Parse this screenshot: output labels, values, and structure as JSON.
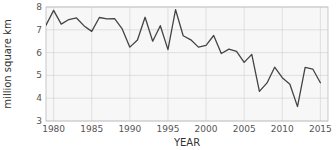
{
  "chart_data": {
    "type": "line",
    "x": [
      1979,
      1980,
      1981,
      1982,
      1983,
      1984,
      1985,
      1986,
      1987,
      1988,
      1989,
      1990,
      1991,
      1992,
      1993,
      1994,
      1995,
      1996,
      1997,
      1998,
      1999,
      2000,
      2001,
      2002,
      2003,
      2004,
      2005,
      2006,
      2007,
      2008,
      2009,
      2010,
      2011,
      2012,
      2013,
      2014,
      2015
    ],
    "values": [
      7.2,
      7.85,
      7.25,
      7.45,
      7.52,
      7.17,
      6.93,
      7.54,
      7.48,
      7.49,
      7.04,
      6.24,
      6.55,
      7.55,
      6.5,
      7.18,
      6.13,
      7.88,
      6.74,
      6.56,
      6.24,
      6.32,
      6.75,
      5.96,
      6.15,
      6.05,
      5.57,
      5.92,
      4.3,
      4.67,
      5.36,
      4.9,
      4.61,
      3.63,
      5.35,
      5.28,
      4.68
    ],
    "xlim": [
      1979,
      2016
    ],
    "ylim": [
      3,
      8
    ],
    "xticks": [
      1980,
      1985,
      1990,
      1995,
      2000,
      2005,
      2010,
      2015
    ],
    "yticks": [
      3,
      4,
      5,
      6,
      7,
      8
    ],
    "xlabel": "YEAR",
    "ylabel": "million square km",
    "color": "#444444",
    "grid": true
  }
}
